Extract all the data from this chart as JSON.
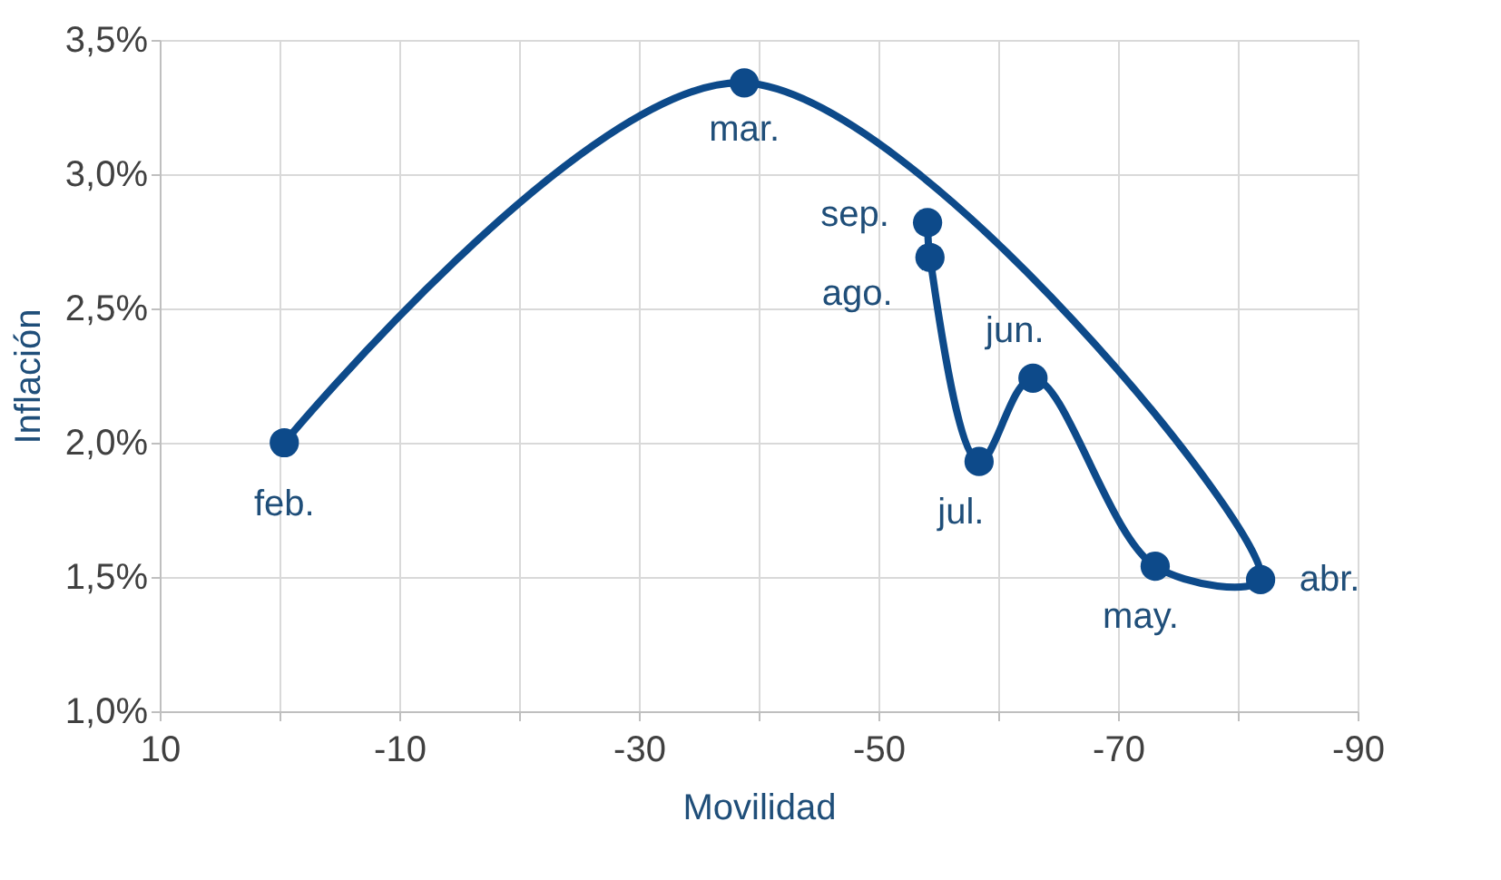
{
  "chart_data": {
    "type": "line",
    "xlabel": "Movilidad",
    "ylabel": "Inflación",
    "x": [
      -0.4,
      -38.8,
      -81.9,
      -73.1,
      -62.9,
      -58.4,
      -54.3,
      -54.1
    ],
    "series": [
      {
        "color": "#0d4a8a",
        "values": [
          2.0,
          3.34,
          1.49,
          1.54,
          2.24,
          1.93,
          2.69,
          2.82
        ]
      }
    ],
    "annotations": [
      {
        "text": "feb.",
        "x": -0.4,
        "y": 2.0
      },
      {
        "text": "mar.",
        "x": -38.8,
        "y": 3.34
      },
      {
        "text": "abr.",
        "x": -81.9,
        "y": 1.49
      },
      {
        "text": "may.",
        "x": -73.1,
        "y": 1.54
      },
      {
        "text": "jun.",
        "x": -62.9,
        "y": 2.24
      },
      {
        "text": "jul.",
        "x": -58.4,
        "y": 1.93
      },
      {
        "text": "ago.",
        "x": -54.3,
        "y": 2.69
      },
      {
        "text": "sep.",
        "x": -54.1,
        "y": 2.82
      }
    ],
    "xlim": [
      10,
      -90
    ],
    "xticks": [
      10,
      {
        "value": 0,
        "label": null
      },
      -10,
      {
        "value": -20,
        "label": null
      },
      -30,
      {
        "value": -40,
        "label": null
      },
      -50,
      {
        "value": -60,
        "label": null
      },
      -70,
      {
        "value": -80,
        "label": null
      },
      -90
    ],
    "ylim": [
      1.0,
      3.5
    ],
    "yticks": [
      {
        "value": 1.0,
        "label": "1,0%"
      },
      {
        "value": 1.5,
        "label": "1,5%"
      },
      {
        "value": 2.0,
        "label": "2,0%"
      },
      {
        "value": 2.5,
        "label": "2,5%"
      },
      {
        "value": 3.0,
        "label": "3,0%"
      },
      {
        "value": 3.5,
        "label": "3,5%"
      }
    ],
    "grid": true,
    "marker": "circle",
    "line_style": "solid"
  }
}
